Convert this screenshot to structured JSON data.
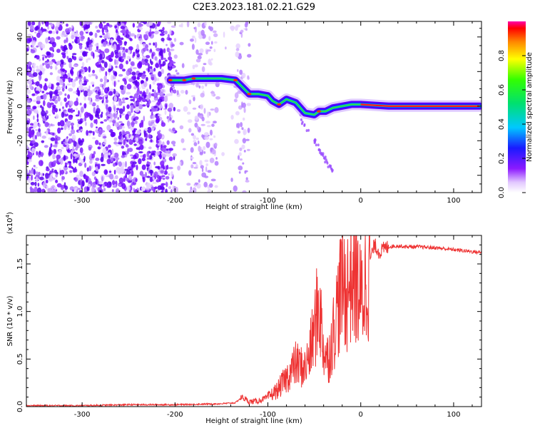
{
  "title": "C2E3.2023.181.02.21.G29",
  "chart_data": [
    {
      "type": "heatmap",
      "name": "spectrogram",
      "xlabel": "Height of straight line (km)",
      "ylabel": "Frequency (Hz)",
      "xlim": [
        -360,
        130
      ],
      "ylim": [
        -50,
        49
      ],
      "x_ticks": [
        -300,
        -200,
        -100,
        0,
        100
      ],
      "x_tick_labels": [
        "-300",
        "-200",
        "-100",
        "0",
        "100"
      ],
      "y_ticks": [
        -40,
        -20,
        0,
        20,
        40
      ],
      "y_tick_labels": [
        "-40",
        "-20",
        "0",
        "20",
        "40"
      ],
      "colorbar": {
        "label": "Normalized spectral amplitude",
        "range": [
          0,
          1
        ],
        "ticks": [
          0.0,
          0.2,
          0.4,
          0.6,
          0.8
        ],
        "tick_labels": [
          "0.0",
          "0.2",
          "0.4",
          "0.6",
          "0.8"
        ]
      },
      "signal_track": [
        {
          "x": -205,
          "y": 15
        },
        {
          "x": -190,
          "y": 15
        },
        {
          "x": -180,
          "y": 16
        },
        {
          "x": -165,
          "y": 16
        },
        {
          "x": -150,
          "y": 16
        },
        {
          "x": -135,
          "y": 15
        },
        {
          "x": -120,
          "y": 7
        },
        {
          "x": -110,
          "y": 7
        },
        {
          "x": -100,
          "y": 6
        },
        {
          "x": -95,
          "y": 3
        },
        {
          "x": -88,
          "y": 1
        },
        {
          "x": -80,
          "y": 4
        },
        {
          "x": -70,
          "y": 2
        },
        {
          "x": -60,
          "y": -4
        },
        {
          "x": -50,
          "y": -5
        },
        {
          "x": -45,
          "y": -3
        },
        {
          "x": -38,
          "y": -3
        },
        {
          "x": -30,
          "y": -1
        },
        {
          "x": -20,
          "y": 0
        },
        {
          "x": -10,
          "y": 1
        },
        {
          "x": 0,
          "y": 1
        },
        {
          "x": 30,
          "y": 0
        },
        {
          "x": 60,
          "y": 0
        },
        {
          "x": 95,
          "y": 0
        },
        {
          "x": 128,
          "y": 0
        }
      ]
    },
    {
      "type": "line",
      "name": "snr",
      "xlabel": "Height of straight line (km)",
      "ylabel": "SNR (10 * v/v)",
      "y_scale_label": "(x10",
      "y_scale_exponent": "4",
      "y_scale_suffix": ")",
      "xlim": [
        -360,
        130
      ],
      "ylim": [
        0,
        1.8
      ],
      "x_ticks": [
        -300,
        -200,
        -100,
        0,
        100
      ],
      "x_tick_labels": [
        "-300",
        "-200",
        "-100",
        "0",
        "100"
      ],
      "y_ticks": [
        0.0,
        0.5,
        1.0,
        1.5
      ],
      "y_tick_labels": [
        "0.0",
        "0.5",
        "1.0",
        "1.5"
      ],
      "color": "#ee3333",
      "series": [
        {
          "name": "SNR",
          "x": [
            -360,
            -300,
            -250,
            -200,
            -150,
            -135,
            -128,
            -120,
            -110,
            -100,
            -90,
            -80,
            -70,
            -60,
            -55,
            -50,
            -45,
            -40,
            -35,
            -30,
            -25,
            -20,
            -15,
            -10,
            -5,
            0,
            5,
            10,
            15,
            20,
            25,
            30,
            40,
            50,
            60,
            80,
            100,
            130
          ],
          "y": [
            0.01,
            0.01,
            0.02,
            0.02,
            0.03,
            0.04,
            0.1,
            0.05,
            0.06,
            0.1,
            0.17,
            0.3,
            0.45,
            0.4,
            0.55,
            0.8,
            1.1,
            0.6,
            0.5,
            0.75,
            1.05,
            1.3,
            1.2,
            1.4,
            1.35,
            1.1,
            1.3,
            1.55,
            1.7,
            1.62,
            1.66,
            1.68,
            1.69,
            1.68,
            1.68,
            1.67,
            1.65,
            1.62
          ]
        }
      ]
    }
  ]
}
